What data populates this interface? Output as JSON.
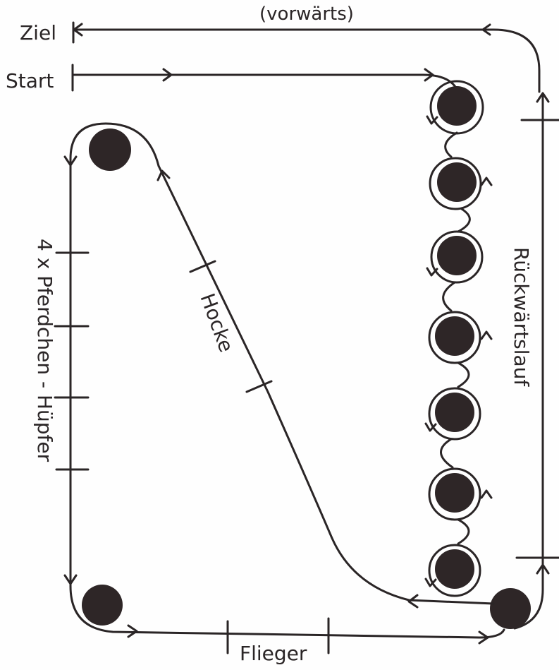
{
  "labels": {
    "top": "(vorwärts)",
    "finish": "Ziel",
    "start": "Start",
    "diagonal": "Hocke",
    "left_side": "4 x Pferdchen - Hüpfer",
    "right_side": "Rückwärtslauf",
    "bottom": "Flieger"
  },
  "colors": {
    "ink": "#2a2526",
    "cone": "#2e2627",
    "paper": "#fefefe"
  }
}
